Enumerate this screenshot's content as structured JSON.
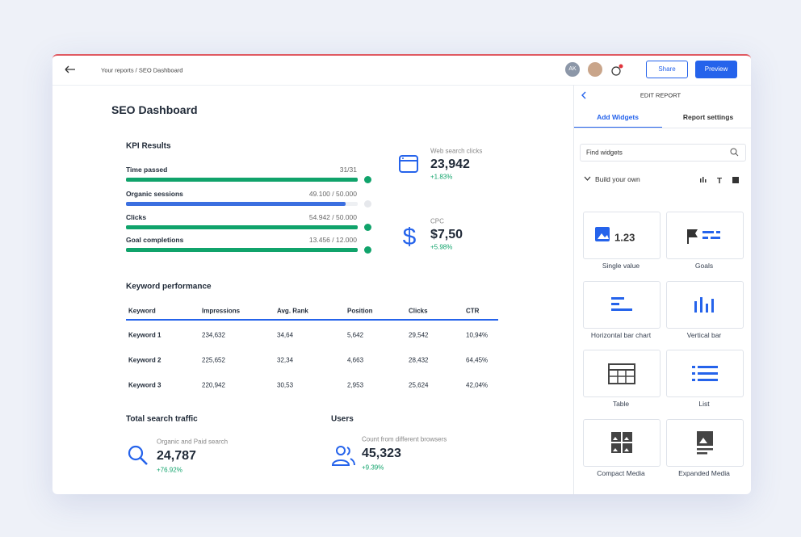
{
  "header": {
    "breadcrumb": "Your reports / SEO Dashboard",
    "avatar": "AK",
    "share": "Share",
    "preview": "Preview"
  },
  "dashboard": {
    "title": "SEO Dashboard",
    "kpi": {
      "title": "KPI Results",
      "items": [
        {
          "label": "Time passed",
          "value": "31/31"
        },
        {
          "label": "Organic sessions",
          "value": "49.100 / 50.000"
        },
        {
          "label": "Clicks",
          "value": "54.942 / 50.000"
        },
        {
          "label": "Goal completions",
          "value": "13.456 / 12.000"
        }
      ]
    },
    "metrics": [
      {
        "label": "Web search clicks",
        "value": "23,942",
        "change": "+1.83%"
      },
      {
        "label": "CPC",
        "value": "$7,50",
        "change": "+5.98%"
      }
    ],
    "keywords": {
      "title": "Keyword performance",
      "columns": [
        "Keyword",
        "Impressions",
        "Avg. Rank",
        "Position",
        "Clicks",
        "CTR"
      ],
      "rows": [
        [
          "Keyword 1",
          "234,632",
          "34,64",
          "5,642",
          "29,542",
          "10,94%"
        ],
        [
          "Keyword 2",
          "225,652",
          "32,34",
          "4,663",
          "28,432",
          "64,45%"
        ],
        [
          "Keyword 3",
          "220,942",
          "30,53",
          "2,953",
          "25,624",
          "42,04%"
        ]
      ]
    },
    "traffic": {
      "title": "Total search traffic",
      "label": "Organic and Paid search",
      "value": "24,787",
      "change": "+76.92%"
    },
    "users": {
      "title": "Users",
      "label": "Count from different browsers",
      "value": "45,323",
      "change": "+9.39%"
    }
  },
  "panel": {
    "title": "EDIT REPORT",
    "tabs": [
      "Add Widgets",
      "Report settings"
    ],
    "search": "Find widgets",
    "section": "Build your own",
    "single_value_sample": "1.23",
    "widgets": [
      "Single value",
      "Goals",
      "Horizontal bar chart",
      "Vertical bar",
      "Table",
      "List",
      "Compact Media",
      "Expanded Media"
    ]
  }
}
